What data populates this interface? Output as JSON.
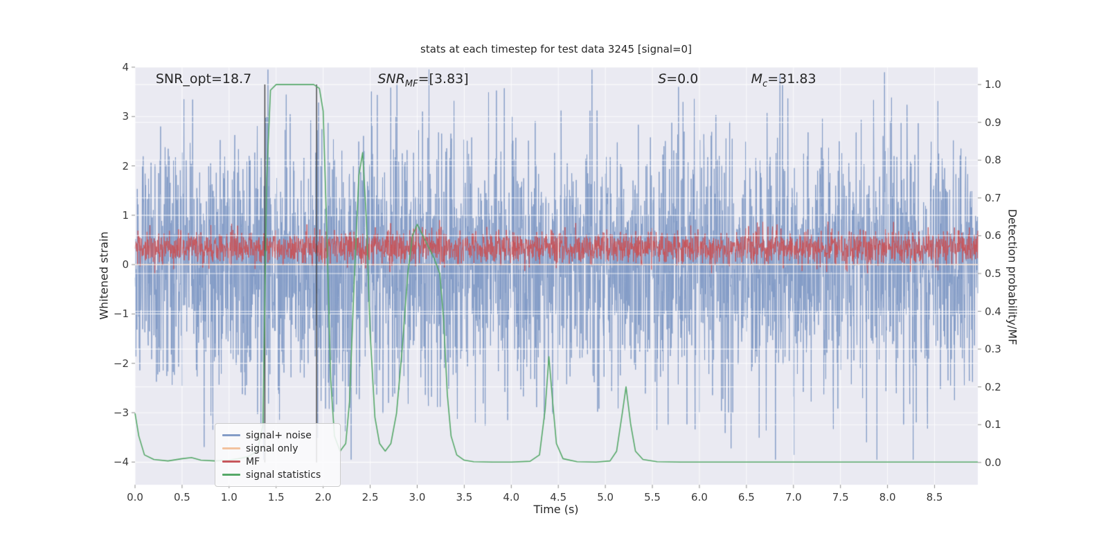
{
  "chart_data": {
    "type": "line",
    "title": "stats at each timestep for test data 3245 [signal=0]",
    "xlabel": "Time (s)",
    "ylabel_left": "Whitened strain",
    "ylabel_right": "Detection probability/MF",
    "xlim": [
      0,
      8.96
    ],
    "ylim_left": [
      -4.46,
      4.0
    ],
    "ylim_right": [
      -0.059,
      1.046
    ],
    "grid": true,
    "background": "#eaeaf2",
    "x_ticks": {
      "values": [
        0,
        0.5,
        1.0,
        1.5,
        2.0,
        2.5,
        3.0,
        3.5,
        4.0,
        4.5,
        5.0,
        5.5,
        6.0,
        6.5,
        7.0,
        7.5,
        8.0,
        8.5
      ],
      "labels": [
        "0.0",
        "0.5",
        "1.0",
        "1.5",
        "2.0",
        "2.5",
        "3.0",
        "3.5",
        "4.0",
        "4.5",
        "5.0",
        "5.5",
        "6.0",
        "6.5",
        "7.0",
        "7.5",
        "8.0",
        "8.5"
      ]
    },
    "y_ticks_left": {
      "values": [
        4,
        3,
        2,
        1,
        0,
        -1,
        -2,
        -3,
        -4
      ],
      "labels": [
        "4",
        "3",
        "2",
        "1",
        "0",
        "−1",
        "−2",
        "−3",
        "−4"
      ]
    },
    "y_ticks_right": {
      "values": [
        1.0,
        0.9,
        0.8,
        0.7,
        0.6,
        0.5,
        0.4,
        0.3,
        0.2,
        0.1,
        0.0
      ],
      "labels": [
        "1.0",
        "0.9",
        "0.8",
        "0.7",
        "0.6",
        "0.5",
        "0.4",
        "0.3",
        "0.2",
        "0.1",
        "0.0"
      ]
    },
    "series": [
      {
        "name": "signal+ noise",
        "type": "noise",
        "axis": "left",
        "color": "#839cc7",
        "mean": 0,
        "std": 1.3,
        "n": 3000,
        "seed": 42,
        "clip": [
          -3.95,
          3.95
        ]
      },
      {
        "name": "signal only",
        "type": "flat",
        "axis": "left",
        "color": "#f3c29e",
        "value": 0
      },
      {
        "name": "MF",
        "type": "noise",
        "axis": "left",
        "color": "#c7565c",
        "mean": 0.35,
        "std": 0.17,
        "n": 2600,
        "seed": 7,
        "clip": [
          -0.18,
          0.98
        ]
      },
      {
        "name": "signal statistics",
        "type": "line",
        "axis": "right",
        "color": "#55a868",
        "points": [
          [
            0.0,
            0.13
          ],
          [
            0.04,
            0.07
          ],
          [
            0.1,
            0.02
          ],
          [
            0.2,
            0.008
          ],
          [
            0.35,
            0.004
          ],
          [
            0.5,
            0.01
          ],
          [
            0.6,
            0.013
          ],
          [
            0.7,
            0.006
          ],
          [
            0.85,
            0.004
          ],
          [
            1.0,
            0.006
          ],
          [
            1.1,
            0.01
          ],
          [
            1.2,
            0.015
          ],
          [
            1.3,
            0.03
          ],
          [
            1.36,
            0.1
          ],
          [
            1.4,
            0.75
          ],
          [
            1.44,
            0.985
          ],
          [
            1.5,
            1.0
          ],
          [
            1.6,
            1.0
          ],
          [
            1.7,
            1.0
          ],
          [
            1.8,
            1.0
          ],
          [
            1.9,
            1.0
          ],
          [
            1.96,
            0.99
          ],
          [
            2.0,
            0.93
          ],
          [
            2.04,
            0.6
          ],
          [
            2.08,
            0.22
          ],
          [
            2.12,
            0.07
          ],
          [
            2.18,
            0.03
          ],
          [
            2.24,
            0.05
          ],
          [
            2.28,
            0.16
          ],
          [
            2.33,
            0.48
          ],
          [
            2.38,
            0.76
          ],
          [
            2.42,
            0.82
          ],
          [
            2.46,
            0.64
          ],
          [
            2.5,
            0.34
          ],
          [
            2.55,
            0.12
          ],
          [
            2.6,
            0.05
          ],
          [
            2.66,
            0.03
          ],
          [
            2.72,
            0.05
          ],
          [
            2.78,
            0.13
          ],
          [
            2.84,
            0.3
          ],
          [
            2.9,
            0.5
          ],
          [
            2.95,
            0.6
          ],
          [
            3.0,
            0.63
          ],
          [
            3.06,
            0.6
          ],
          [
            3.12,
            0.57
          ],
          [
            3.18,
            0.54
          ],
          [
            3.24,
            0.5
          ],
          [
            3.28,
            0.38
          ],
          [
            3.32,
            0.18
          ],
          [
            3.36,
            0.07
          ],
          [
            3.42,
            0.02
          ],
          [
            3.5,
            0.006
          ],
          [
            3.6,
            0.002
          ],
          [
            3.8,
            0.001
          ],
          [
            4.0,
            0.001
          ],
          [
            4.2,
            0.003
          ],
          [
            4.3,
            0.02
          ],
          [
            4.36,
            0.14
          ],
          [
            4.4,
            0.28
          ],
          [
            4.44,
            0.16
          ],
          [
            4.48,
            0.05
          ],
          [
            4.55,
            0.01
          ],
          [
            4.7,
            0.002
          ],
          [
            4.9,
            0.001
          ],
          [
            5.05,
            0.004
          ],
          [
            5.12,
            0.03
          ],
          [
            5.18,
            0.13
          ],
          [
            5.22,
            0.2
          ],
          [
            5.27,
            0.1
          ],
          [
            5.32,
            0.03
          ],
          [
            5.4,
            0.008
          ],
          [
            5.55,
            0.002
          ],
          [
            5.8,
            0.001
          ],
          [
            6.2,
            0.001
          ],
          [
            6.6,
            0.001
          ],
          [
            7.0,
            0.001
          ],
          [
            7.5,
            0.001
          ],
          [
            8.0,
            0.001
          ],
          [
            8.5,
            0.001
          ],
          [
            8.96,
            0.001
          ]
        ]
      }
    ],
    "vlines": {
      "color": "#3f3f3f",
      "x": [
        1.38,
        1.93
      ]
    },
    "annotations": {
      "snr_opt": {
        "text": "SNR_opt=18.7",
        "x": 0.22
      },
      "snr_mf": {
        "pre": "SNR",
        "sub": "MF",
        "post": "=[3.83]",
        "x": 2.58
      },
      "s": {
        "pre": "S",
        "sub": "",
        "post": "=0.0",
        "x": 5.56
      },
      "mc": {
        "pre": "M",
        "sub": "c",
        "post": "=31.83",
        "x": 6.55
      }
    },
    "legend": {
      "position": "lower left",
      "items": [
        {
          "label": "signal+ noise"
        },
        {
          "label": "signal only"
        },
        {
          "label": "MF"
        },
        {
          "label": "signal statistics"
        }
      ]
    }
  }
}
